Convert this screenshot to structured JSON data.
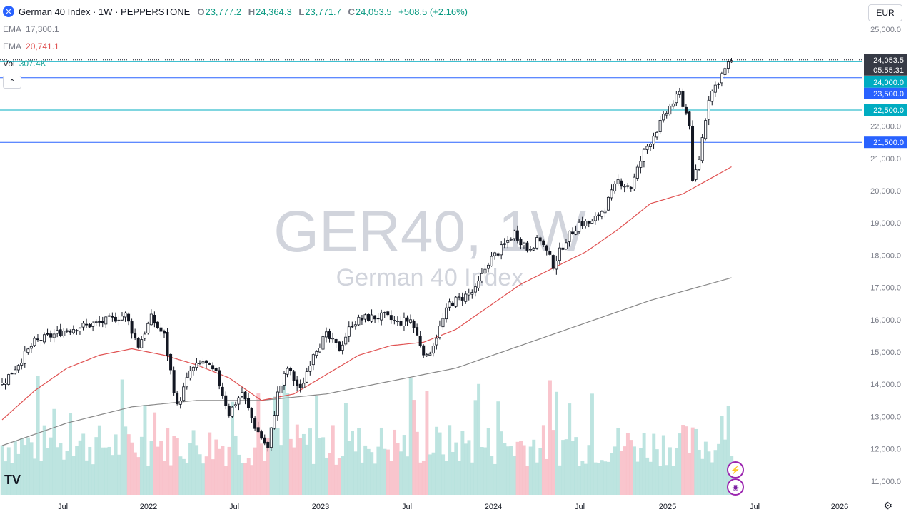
{
  "header": {
    "logo_glyph": "✕",
    "title": "German 40 Index · 1W · PEPPERSTONE",
    "o_label": "O",
    "o_value": "23,777.2",
    "h_label": "H",
    "h_value": "24,364.3",
    "l_label": "L",
    "l_value": "23,771.7",
    "c_label": "C",
    "c_value": "24,053.5",
    "change": "+508.5 (+2.16%)"
  },
  "indicators": {
    "ema_slow_label": "EMA",
    "ema_slow_value": "17,300.1",
    "ema_fast_label": "EMA",
    "ema_fast_value": "20,741.1",
    "vol_label": "Vol",
    "vol_value": "307.4K"
  },
  "toolbar": {
    "currency": "EUR",
    "collapse_glyph": "⌃"
  },
  "watermark": {
    "symbol": "GER40, 1W",
    "name": "German 40 Index"
  },
  "footer": {
    "brand": "TV",
    "settings_icon": "gear-icon",
    "flash_icon": "lightning-icon",
    "globe_icon": "globe-icon"
  },
  "colors": {
    "up": "#089981",
    "down": "#f23645",
    "ema_fast": "#e05252",
    "ema_slow": "#888888",
    "hline_cyan": "#00acc1",
    "hline_blue": "#2962ff",
    "vol_up": "#b2dfdb",
    "vol_down": "#f8bbc4"
  },
  "chart_data": {
    "type": "candlestick",
    "timeframe": "1W",
    "y_ticks": [
      "25,000.0",
      "24,000.0",
      "23,000.0",
      "22,000.0",
      "21,000.0",
      "20,000.0",
      "19,000.0",
      "18,000.0",
      "17,000.0",
      "16,000.0",
      "15,000.0",
      "14,000.0",
      "13,000.0",
      "12,000.0",
      "11,000.0"
    ],
    "x_ticks": [
      "Jul",
      "2022",
      "Jul",
      "2023",
      "Jul",
      "2024",
      "Jul",
      "2025",
      "Jul",
      "2026"
    ],
    "ylim": [
      10600,
      25500
    ],
    "last_price": {
      "label": "24,053.5",
      "value": 24053.5,
      "countdown": "05:55:31"
    },
    "horizontal_lines": [
      {
        "label": "24,000.0",
        "value": 24000,
        "color": "#00acc1"
      },
      {
        "label": "23,500.0",
        "value": 23500,
        "color": "#2962ff"
      },
      {
        "label": "22,500.0",
        "value": 22500,
        "color": "#00acc1"
      },
      {
        "label": "21,500.0",
        "value": 21500,
        "color": "#2962ff"
      }
    ],
    "close_anchors": [
      [
        0,
        14000
      ],
      [
        10,
        15300
      ],
      [
        20,
        15700
      ],
      [
        30,
        15900
      ],
      [
        38,
        16150
      ],
      [
        42,
        15200
      ],
      [
        46,
        16050
      ],
      [
        50,
        15500
      ],
      [
        54,
        13300
      ],
      [
        58,
        14400
      ],
      [
        62,
        14700
      ],
      [
        66,
        14300
      ],
      [
        70,
        13100
      ],
      [
        74,
        13750
      ],
      [
        78,
        12700
      ],
      [
        82,
        12000
      ],
      [
        85,
        13700
      ],
      [
        88,
        14500
      ],
      [
        92,
        13800
      ],
      [
        96,
        15000
      ],
      [
        100,
        15500
      ],
      [
        104,
        15100
      ],
      [
        108,
        15900
      ],
      [
        112,
        16050
      ],
      [
        118,
        16100
      ],
      [
        122,
        15900
      ],
      [
        126,
        16000
      ],
      [
        128,
        15500
      ],
      [
        131,
        14800
      ],
      [
        134,
        15500
      ],
      [
        138,
        16500
      ],
      [
        142,
        16700
      ],
      [
        146,
        16900
      ],
      [
        150,
        17800
      ],
      [
        154,
        18200
      ],
      [
        158,
        18700
      ],
      [
        162,
        18200
      ],
      [
        166,
        18500
      ],
      [
        170,
        17700
      ],
      [
        174,
        18500
      ],
      [
        178,
        19000
      ],
      [
        182,
        19000
      ],
      [
        186,
        19500
      ],
      [
        190,
        20300
      ],
      [
        194,
        20100
      ],
      [
        198,
        21200
      ],
      [
        202,
        21900
      ],
      [
        206,
        22600
      ],
      [
        209,
        23000
      ],
      [
        212,
        22100
      ],
      [
        213,
        20200
      ],
      [
        215,
        21000
      ],
      [
        218,
        22900
      ],
      [
        222,
        23600
      ],
      [
        225,
        24053
      ]
    ],
    "ema_fast_anchors": [
      [
        0,
        12900
      ],
      [
        10,
        13800
      ],
      [
        20,
        14500
      ],
      [
        30,
        14900
      ],
      [
        40,
        15100
      ],
      [
        50,
        14900
      ],
      [
        60,
        14600
      ],
      [
        70,
        14200
      ],
      [
        80,
        13500
      ],
      [
        90,
        13700
      ],
      [
        100,
        14300
      ],
      [
        110,
        14900
      ],
      [
        120,
        15200
      ],
      [
        130,
        15300
      ],
      [
        140,
        15700
      ],
      [
        150,
        16400
      ],
      [
        160,
        17100
      ],
      [
        170,
        17600
      ],
      [
        180,
        18100
      ],
      [
        190,
        18800
      ],
      [
        200,
        19600
      ],
      [
        210,
        19900
      ],
      [
        225,
        20741
      ]
    ],
    "ema_slow_anchors": [
      [
        0,
        12100
      ],
      [
        20,
        12800
      ],
      [
        40,
        13300
      ],
      [
        60,
        13500
      ],
      [
        80,
        13500
      ],
      [
        100,
        13700
      ],
      [
        120,
        14100
      ],
      [
        140,
        14500
      ],
      [
        160,
        15200
      ],
      [
        180,
        15900
      ],
      [
        200,
        16600
      ],
      [
        225,
        17300
      ]
    ]
  }
}
